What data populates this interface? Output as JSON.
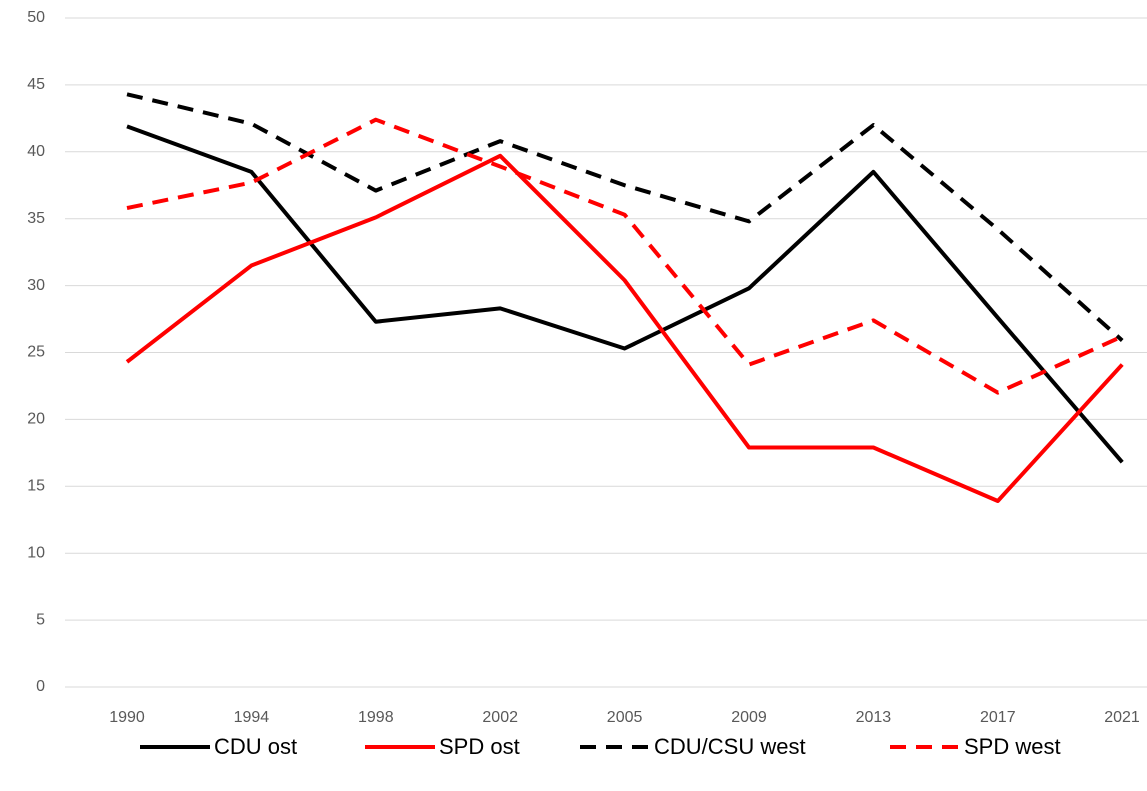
{
  "chart_data": {
    "type": "line",
    "categories": [
      "1990",
      "1994",
      "1998",
      "2002",
      "2005",
      "2009",
      "2013",
      "2017",
      "2021"
    ],
    "series": [
      {
        "name": "CDU ost",
        "color": "#000000",
        "dashed": false,
        "values": [
          41.9,
          38.5,
          27.3,
          28.3,
          25.3,
          29.8,
          38.5,
          27.6,
          16.8
        ]
      },
      {
        "name": "SPD ost",
        "color": "#ff0000",
        "dashed": false,
        "values": [
          24.3,
          31.5,
          35.1,
          39.7,
          30.4,
          17.9,
          17.9,
          13.9,
          24.1
        ]
      },
      {
        "name": "CDU/CSU west",
        "color": "#000000",
        "dashed": true,
        "values": [
          44.3,
          42.1,
          37.1,
          40.8,
          37.5,
          34.8,
          42.0,
          34.2,
          25.9
        ]
      },
      {
        "name": "SPD west",
        "color": "#ff0000",
        "dashed": true,
        "values": [
          35.8,
          37.7,
          42.4,
          38.9,
          35.3,
          24.1,
          27.4,
          22.0,
          26.2
        ]
      }
    ],
    "ylim": [
      0,
      50
    ],
    "yticks": [
      0,
      5,
      10,
      15,
      20,
      25,
      30,
      35,
      40,
      45,
      50
    ],
    "grid": true,
    "legend": "bottom"
  }
}
